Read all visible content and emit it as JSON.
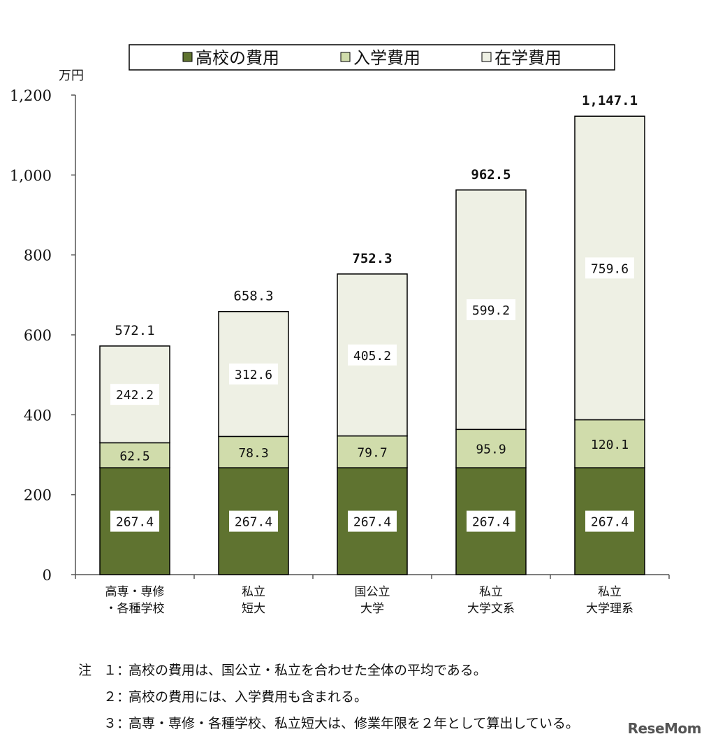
{
  "chart_data": {
    "type": "bar",
    "stacked": true,
    "unit_label": "万円",
    "categories": [
      [
        "高専・専修",
        "・各種学校"
      ],
      [
        "私立",
        "短大"
      ],
      [
        "国公立",
        "大学"
      ],
      [
        "私立",
        "大学文系"
      ],
      [
        "私立",
        "大学理系"
      ]
    ],
    "series": [
      {
        "name": "高校の費用",
        "color": "#5f7330",
        "values": [
          267.4,
          267.4,
          267.4,
          267.4,
          267.4
        ]
      },
      {
        "name": "入学費用",
        "color": "#d0dcab",
        "values": [
          62.5,
          78.3,
          79.7,
          95.9,
          120.1
        ]
      },
      {
        "name": "在学費用",
        "color": "#eef0e4",
        "values": [
          242.2,
          312.6,
          405.2,
          599.2,
          759.6
        ]
      }
    ],
    "series_labels": [
      [
        "267.4",
        "267.4",
        "267.4",
        "267.4",
        "267.4"
      ],
      [
        "62.5",
        "78.3",
        "79.7",
        "95.9",
        "120.1"
      ],
      [
        "242.2",
        "312.6",
        "405.2",
        "599.2",
        "759.6"
      ]
    ],
    "totals": [
      572.1,
      658.3,
      752.3,
      962.5,
      1147.1
    ],
    "total_labels": [
      "572.1",
      "658.3",
      "752.3",
      "962.5",
      "1,147.1"
    ],
    "total_bold": [
      false,
      false,
      true,
      true,
      true
    ],
    "yticks": [
      0,
      200,
      400,
      600,
      800,
      1000,
      1200
    ],
    "ytick_labels": [
      "0",
      "200",
      "400",
      "600",
      "800",
      "1,000",
      "1,200"
    ],
    "ylim": [
      0,
      1200
    ],
    "legend_position": "top",
    "grid": false
  },
  "notes": {
    "prefix": "注",
    "items": [
      {
        "num": "１：",
        "text": "高校の費用は、国公立・私立を合わせた全体の平均である。"
      },
      {
        "num": "２：",
        "text": "高校の費用には、入学費用も含まれる。"
      },
      {
        "num": "３：",
        "text": "高専・専修・各種学校、私立短大は、修業年限を２年として算出している。"
      }
    ]
  },
  "watermark": "ReseMom"
}
